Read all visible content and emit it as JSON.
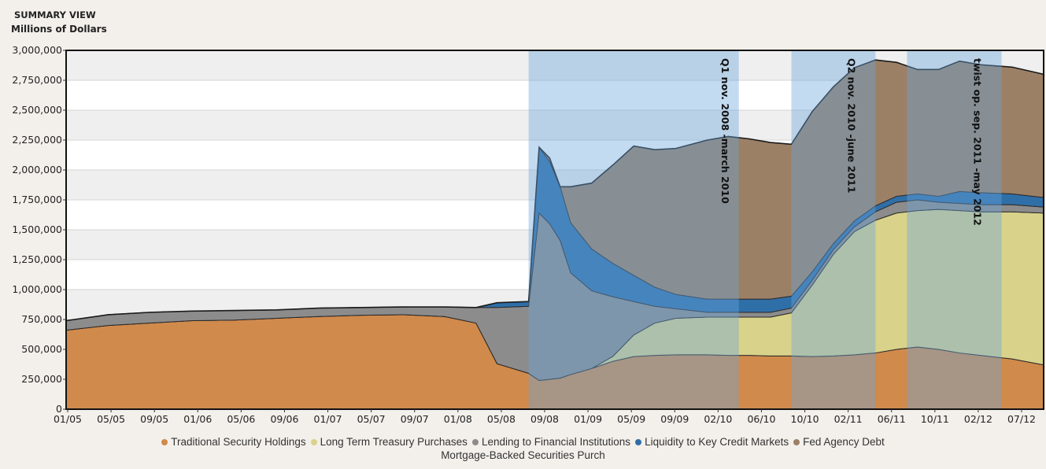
{
  "header": {
    "title": "SUMMARY VIEW",
    "unit": "Millions of Dollars"
  },
  "chart_data": {
    "type": "area",
    "stacked": true,
    "title": "SUMMARY VIEW",
    "ylabel": "Millions of Dollars",
    "xlabel": "",
    "ylim": [
      0,
      3000000
    ],
    "y_ticks": [
      0,
      250000,
      500000,
      750000,
      1000000,
      1250000,
      1500000,
      1750000,
      2000000,
      2250000,
      2500000,
      2750000,
      3000000
    ],
    "y_tick_labels": [
      "0",
      "250,000",
      "500,000",
      "750,000",
      "1,000,000",
      "1,250,000",
      "1,500,000",
      "1,750,000",
      "2,000,000",
      "2,250,000",
      "2,500,000",
      "2,750,000",
      "3,000,000"
    ],
    "x_tick_labels": [
      "01/05",
      "05/05",
      "09/05",
      "01/06",
      "05/06",
      "09/06",
      "01/07",
      "05/07",
      "09/07",
      "01/08",
      "05/08",
      "09/08",
      "01/09",
      "05/09",
      "09/09",
      "02/10",
      "06/10",
      "10/10",
      "02/11",
      "06/11",
      "10/11",
      "02/12",
      "07/12"
    ],
    "x_range": [
      "2005-01",
      "2012-10"
    ],
    "grid": true,
    "legend_position": "bottom",
    "x": [
      "2005-01",
      "2005-05",
      "2005-09",
      "2006-01",
      "2006-05",
      "2006-09",
      "2007-01",
      "2007-05",
      "2007-09",
      "2008-01",
      "2008-04",
      "2008-06",
      "2008-09",
      "2008-10",
      "2008-11",
      "2008-12",
      "2009-01",
      "2009-03",
      "2009-05",
      "2009-07",
      "2009-09",
      "2009-11",
      "2010-02",
      "2010-04",
      "2010-06",
      "2010-08",
      "2010-10",
      "2010-12",
      "2011-02",
      "2011-04",
      "2011-06",
      "2011-08",
      "2011-10",
      "2011-12",
      "2012-02",
      "2012-04",
      "2012-07",
      "2012-10"
    ],
    "series": [
      {
        "name": "Traditional Security Holdings",
        "color": "#d08a4c",
        "values": [
          660000,
          700000,
          720000,
          740000,
          745000,
          760000,
          775000,
          785000,
          790000,
          775000,
          720000,
          380000,
          300000,
          240000,
          250000,
          260000,
          290000,
          340000,
          400000,
          440000,
          450000,
          455000,
          455000,
          450000,
          450000,
          445000,
          445000,
          440000,
          445000,
          455000,
          470000,
          500000,
          520000,
          500000,
          470000,
          450000,
          420000,
          370000
        ]
      },
      {
        "name": "Long Term Treasury Purchases",
        "color": "#d9d28a",
        "values": [
          0,
          0,
          0,
          0,
          0,
          0,
          0,
          0,
          0,
          0,
          0,
          0,
          0,
          0,
          0,
          0,
          0,
          0,
          40000,
          180000,
          270000,
          305000,
          315000,
          320000,
          320000,
          325000,
          360000,
          600000,
          850000,
          1030000,
          1110000,
          1140000,
          1140000,
          1170000,
          1190000,
          1200000,
          1230000,
          1270000
        ]
      },
      {
        "name": "Lending to Financial Institutions",
        "color": "#8c8c8c",
        "values": [
          80000,
          90000,
          90000,
          80000,
          80000,
          70000,
          70000,
          65000,
          65000,
          80000,
          130000,
          470000,
          560000,
          1400000,
          1300000,
          1150000,
          850000,
          650000,
          500000,
          280000,
          140000,
          80000,
          40000,
          40000,
          40000,
          40000,
          40000,
          40000,
          40000,
          40000,
          70000,
          90000,
          90000,
          60000,
          60000,
          60000,
          60000,
          50000
        ]
      },
      {
        "name": "Liquidity to Key Credit Markets",
        "color": "#2f6fa8",
        "values": [
          0,
          0,
          0,
          0,
          0,
          0,
          0,
          0,
          0,
          0,
          0,
          40000,
          40000,
          550000,
          520000,
          450000,
          420000,
          350000,
          280000,
          220000,
          160000,
          120000,
          110000,
          110000,
          110000,
          110000,
          100000,
          70000,
          50000,
          50000,
          50000,
          50000,
          50000,
          50000,
          100000,
          100000,
          90000,
          80000
        ]
      },
      {
        "name": "Fed Agency Debt",
        "color": "#9c8066",
        "values": [
          0,
          0,
          0,
          0,
          0,
          0,
          0,
          0,
          0,
          0,
          0,
          0,
          0,
          0,
          30000,
          0,
          300000,
          550000,
          820000,
          1080000,
          1150000,
          1220000,
          1330000,
          1360000,
          1340000,
          1310000,
          1270000,
          1340000,
          1310000,
          1280000,
          1220000,
          1120000,
          1040000,
          1060000,
          1090000,
          1070000,
          1060000,
          1030000
        ]
      }
    ],
    "shaded_periods": [
      {
        "start": "2008-09",
        "end": "2010-05",
        "color": "#6aa6dc"
      },
      {
        "start": "2010-10",
        "end": "2011-06",
        "color": "#6aa6dc"
      },
      {
        "start": "2011-09",
        "end": "2012-06",
        "color": "#6aa6dc"
      }
    ],
    "annotations": [
      {
        "text": "Q1 nov. 2008 -march 2010",
        "at": "2010-03"
      },
      {
        "text": "Q2 nov. 2010 -june 2011",
        "at": "2011-03"
      },
      {
        "text": "twist op. sep. 2011 -may 2012",
        "at": "2012-03"
      }
    ],
    "legend_extra": "Mortgage-Backed Securities Purch"
  }
}
